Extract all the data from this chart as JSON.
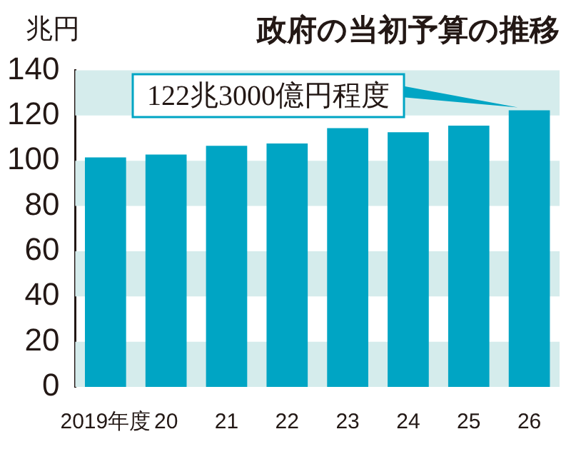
{
  "chart_data": {
    "type": "bar",
    "title": "政府の当初予算の推移",
    "ylabel": "兆円",
    "categories": [
      "2019年度",
      "20",
      "21",
      "22",
      "23",
      "24",
      "25",
      "26"
    ],
    "values": [
      101.5,
      102.7,
      106.6,
      107.6,
      114.4,
      112.6,
      115.5,
      122.3
    ],
    "color": "#00a5c4",
    "ylim": [
      0,
      140
    ],
    "yticks": [
      0,
      20,
      40,
      60,
      80,
      100,
      120,
      140
    ],
    "grid": false,
    "legend": false,
    "bands": [
      {
        "axis": "y",
        "from": 0,
        "to": 20,
        "color": "#d5ecec"
      },
      {
        "axis": "y",
        "from": 40,
        "to": 60,
        "color": "#d5ecec"
      },
      {
        "axis": "y",
        "from": 80,
        "to": 100,
        "color": "#d5ecec"
      },
      {
        "axis": "y",
        "from": 120,
        "to": 140,
        "color": "#d5ecec"
      }
    ],
    "annotations": [
      {
        "text": "122兆3000億円程度",
        "x": "26",
        "y": 122.3
      }
    ]
  }
}
